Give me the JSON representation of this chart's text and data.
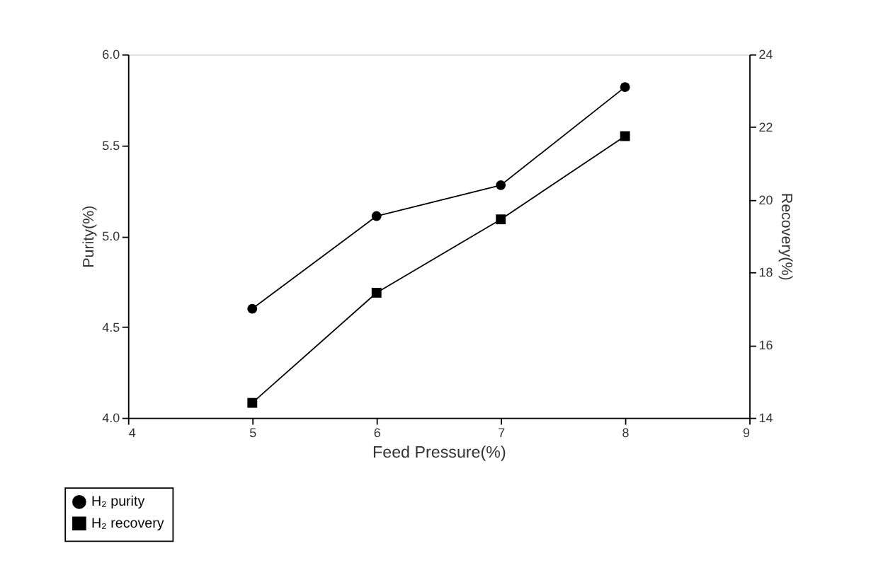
{
  "chart_data": {
    "type": "line",
    "xlabel": "Feed Pressure(%)",
    "ylabel": "Purity(%)",
    "y2label": "Recovery(%)",
    "x": [
      5,
      6,
      7,
      8
    ],
    "series": [
      {
        "name": "H₂ purity",
        "color": "#000000",
        "marker": "circle",
        "values": [
          4.6,
          5.11,
          5.28,
          5.82
        ]
      },
      {
        "name": "H₂ recovery",
        "color": "#000000",
        "marker": "square",
        "axis": "y2",
        "values": [
          14.41,
          17.44,
          19.46,
          21.75
        ]
      }
    ],
    "xlim": [
      4,
      9
    ],
    "xticks": [
      4,
      5,
      6,
      7,
      8,
      9
    ],
    "ylim": [
      4.0,
      6.0
    ],
    "yticks": [
      {
        "value": 4.0,
        "label": "4.0"
      },
      4.5,
      {
        "value": 5.0,
        "label": "5.0"
      },
      5.5,
      {
        "value": 6.0,
        "label": "6.0"
      }
    ],
    "y2lim": [
      14,
      24
    ],
    "y2ticks": [
      14,
      16,
      18,
      20,
      22,
      24
    ],
    "grid": false,
    "legend": "bottom left",
    "line_style": "solid"
  }
}
